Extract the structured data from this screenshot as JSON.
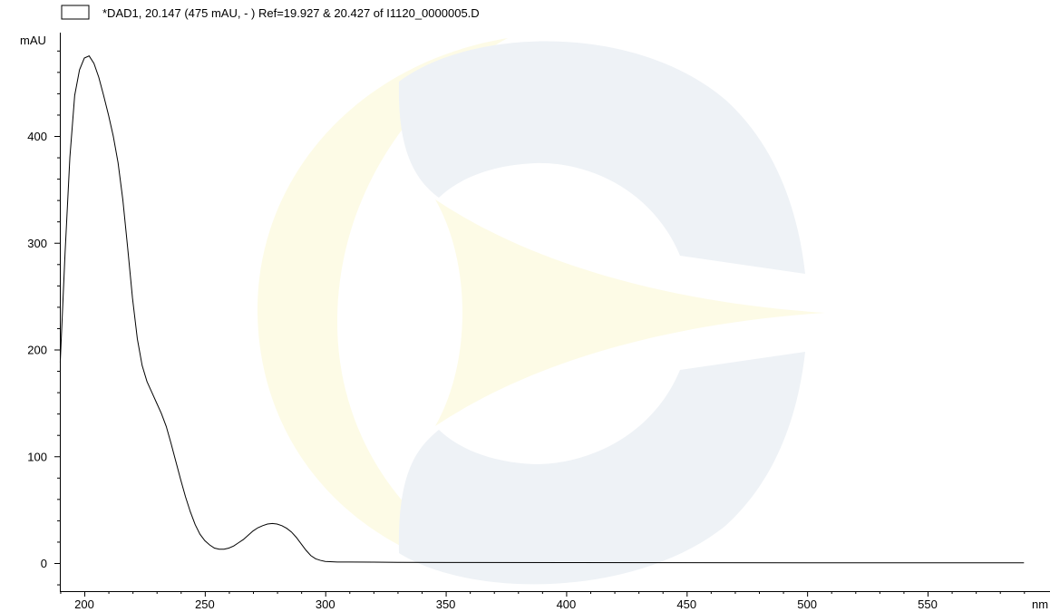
{
  "chart_data": {
    "type": "line",
    "legend": "*DAD1, 20.147 (475 mAU, - ) Ref=19.927 & 20.427 of I1120_0000005.D",
    "xlabel": "nm",
    "ylabel": "mAU",
    "xlim": [
      190,
      590
    ],
    "ylim": [
      -30,
      495
    ],
    "xticks": [
      200,
      250,
      300,
      350,
      400,
      450,
      500,
      550
    ],
    "yticks": [
      0,
      100,
      200,
      300,
      400
    ],
    "grid": false,
    "series": [
      {
        "color": "#000000",
        "x": [
          190,
          192,
          194,
          196,
          198,
          200,
          202,
          204,
          206,
          208,
          210,
          212,
          214,
          216,
          218,
          220,
          222,
          224,
          226,
          228,
          230,
          232,
          234,
          236,
          238,
          240,
          242,
          244,
          246,
          248,
          250,
          252,
          254,
          256,
          258,
          260,
          262,
          264,
          266,
          268,
          270,
          272,
          274,
          276,
          278,
          280,
          282,
          284,
          286,
          288,
          290,
          292,
          294,
          296,
          298,
          300,
          305,
          310,
          320,
          330,
          350,
          400,
          450,
          500,
          550,
          590
        ],
        "y": [
          188,
          290,
          380,
          438,
          462,
          473,
          475,
          468,
          455,
          438,
          420,
          400,
          375,
          340,
          295,
          248,
          210,
          185,
          170,
          160,
          150,
          140,
          128,
          112,
          95,
          78,
          62,
          48,
          36,
          27,
          21,
          17,
          14,
          13,
          13,
          14,
          16,
          19,
          22,
          26,
          30,
          33,
          35,
          36.5,
          37,
          36.5,
          35,
          32.5,
          29,
          24,
          18,
          12,
          7,
          4,
          2.5,
          1.5,
          1,
          1,
          0.8,
          0.6,
          0.5,
          0.4,
          0.3,
          0.2,
          0.2,
          0.2
        ]
      }
    ]
  },
  "watermark": {
    "color_blue": "#eef2f6",
    "color_yellow": "#fdfbe6"
  }
}
